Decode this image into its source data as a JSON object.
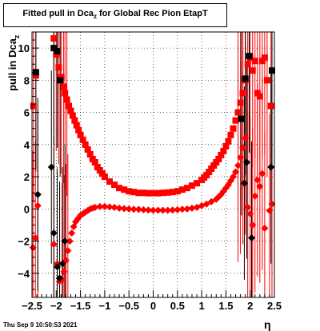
{
  "chart_data": {
    "type": "scatter",
    "title": "Fitted pull in Dca",
    "title_subscript": "z",
    "title_suffix": " for Global Rec Pion EtapT",
    "ylabel": "pull in Dca",
    "ylabel_subscript": "z",
    "xlabel": "η",
    "xlim": [
      -2.5,
      2.5
    ],
    "ylim": [
      -5.5,
      11
    ],
    "xticks": [
      -2.5,
      -2,
      -1.5,
      -1,
      -0.5,
      0,
      0.5,
      1,
      1.5,
      2,
      2.5
    ],
    "xtick_labels": [
      "−2.5",
      "−2",
      "−1.5",
      "−1",
      "−0.5",
      "0",
      "0.5",
      "1",
      "1.5",
      "2",
      "2.5"
    ],
    "yticks": [
      -4,
      -2,
      0,
      2,
      4,
      6,
      8,
      10
    ],
    "ytick_labels": [
      "−4",
      "−2",
      "0",
      "2",
      "4",
      "6",
      "8",
      "10"
    ],
    "grid": true,
    "colors": {
      "mean": "#ff0000",
      "sigma": "#ff0000",
      "black": "#000000"
    },
    "series": [
      {
        "marker": "diamond",
        "color": "#ff0000",
        "x": [
          -2.48,
          -2.43,
          -2.38,
          -2.05,
          -1.98,
          -1.93,
          -1.88,
          -1.84,
          -1.8,
          -1.76,
          -1.72,
          -1.68,
          -1.64,
          -1.6,
          -1.55,
          -1.5,
          -1.45,
          -1.4,
          -1.35,
          -1.3,
          -1.25,
          -1.2,
          -1.1,
          -1.0,
          -0.9,
          -0.8,
          -0.7,
          -0.6,
          -0.5,
          -0.4,
          -0.3,
          -0.2,
          -0.1,
          0,
          0.1,
          0.2,
          0.3,
          0.4,
          0.5,
          0.6,
          0.7,
          0.8,
          0.9,
          1.0,
          1.1,
          1.2,
          1.3,
          1.35,
          1.4,
          1.45,
          1.5,
          1.55,
          1.6,
          1.65,
          1.7,
          1.75,
          1.8,
          1.85,
          1.9,
          1.95,
          2.0,
          2.05,
          2.1,
          2.15,
          2.2,
          2.25,
          2.3,
          2.4,
          2.45
        ],
        "y": [
          -2.4,
          -1.8,
          0.2,
          -2.2,
          -3.4,
          -4.5,
          -4.4,
          -3.9,
          -3.2,
          -2.6,
          -2.0,
          -1.5,
          -1.1,
          -0.8,
          -0.6,
          -0.4,
          -0.3,
          -0.2,
          -0.1,
          0.0,
          0.05,
          0.1,
          0.15,
          0.15,
          0.12,
          0.1,
          0.05,
          0.02,
          0.0,
          -0.02,
          -0.03,
          -0.05,
          -0.07,
          -0.08,
          -0.08,
          -0.08,
          -0.08,
          -0.07,
          -0.05,
          -0.02,
          0.0,
          0.05,
          0.1,
          0.2,
          0.3,
          0.45,
          0.6,
          0.75,
          0.9,
          1.1,
          1.3,
          1.5,
          1.75,
          2.0,
          2.3,
          2.7,
          3.2,
          3.8,
          4.4,
          0.1,
          -0.3,
          -1.0,
          0.8,
          1.8,
          1.4,
          2.2,
          -1.2,
          -0.1,
          0.3
        ]
      },
      {
        "marker": "square",
        "color": "#ff0000",
        "x": [
          -2.47,
          -2.42,
          -2.05,
          -2.0,
          -1.95,
          -1.9,
          -1.85,
          -1.82,
          -1.78,
          -1.74,
          -1.7,
          -1.66,
          -1.62,
          -1.58,
          -1.54,
          -1.5,
          -1.45,
          -1.4,
          -1.35,
          -1.3,
          -1.25,
          -1.2,
          -1.15,
          -1.1,
          -1.05,
          -1.0,
          -0.9,
          -0.8,
          -0.7,
          -0.6,
          -0.5,
          -0.4,
          -0.3,
          -0.2,
          -0.1,
          0,
          0.1,
          0.2,
          0.3,
          0.4,
          0.5,
          0.6,
          0.7,
          0.8,
          0.9,
          1.0,
          1.05,
          1.1,
          1.15,
          1.2,
          1.25,
          1.3,
          1.35,
          1.4,
          1.45,
          1.5,
          1.55,
          1.6,
          1.65,
          1.7,
          1.75,
          1.8,
          1.85,
          1.9,
          1.95,
          2.0,
          2.05,
          2.1,
          2.15,
          2.2,
          2.25,
          2.3,
          2.35,
          2.43
        ],
        "y": [
          6.4,
          8.3,
          10.6,
          9.6,
          8.8,
          8.2,
          7.6,
          7.2,
          6.8,
          6.4,
          6.1,
          5.8,
          5.5,
          5.2,
          4.9,
          4.6,
          4.3,
          4.0,
          3.7,
          3.4,
          3.1,
          2.9,
          2.6,
          2.4,
          2.2,
          2.0,
          1.7,
          1.5,
          1.3,
          1.2,
          1.1,
          1.05,
          1.0,
          1.0,
          0.98,
          0.98,
          0.98,
          1.0,
          1.02,
          1.05,
          1.1,
          1.2,
          1.3,
          1.45,
          1.6,
          1.8,
          1.95,
          2.1,
          2.3,
          2.5,
          2.7,
          2.9,
          3.1,
          3.35,
          3.6,
          3.9,
          4.2,
          4.6,
          5.0,
          5.5,
          6.0,
          6.6,
          7.2,
          8.0,
          9.0,
          9.4,
          8.6,
          9.2,
          7.2,
          7.0,
          9.2,
          9.4,
          8.0,
          6.4
        ]
      },
      {
        "marker": "diamond",
        "color": "#000000",
        "x": [
          -2.38,
          -1.98,
          -1.93,
          -1.87,
          -1.82,
          -2.1,
          -2.05,
          1.88,
          1.93,
          2.03,
          2.43
        ],
        "y": [
          0.9,
          -3.6,
          -4.3,
          -3.4,
          -2.0,
          2.6,
          -1.5,
          1.6,
          2.9,
          -1.8,
          2.6
        ]
      },
      {
        "marker": "square",
        "color": "#000000",
        "x": [
          -2.42,
          -2.05,
          -1.98,
          -1.92,
          1.82,
          1.9,
          1.98,
          2.45
        ],
        "y": [
          8.5,
          10.0,
          9.8,
          8.0,
          5.6,
          8.1,
          9.5,
          8.6
        ]
      }
    ]
  }
}
